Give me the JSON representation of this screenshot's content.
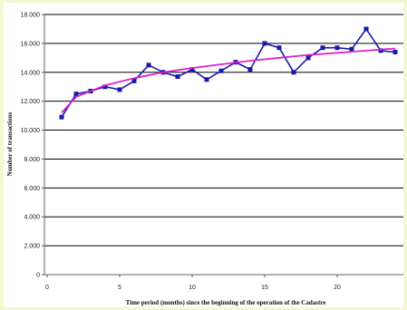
{
  "chart_data": {
    "type": "line",
    "title": "",
    "xlabel": "Time period (months) since the beginning of the operation of the Cadastre",
    "ylabel": "Number of transactions",
    "xlim": [
      0,
      25
    ],
    "ylim": [
      0,
      18000
    ],
    "x_ticks": [
      0,
      5,
      10,
      15,
      20,
      25
    ],
    "x_tick_labels": [
      "0",
      "5",
      "10",
      "15",
      "20",
      "25"
    ],
    "y_ticks": [
      0,
      2000,
      4000,
      6000,
      8000,
      10000,
      12000,
      14000,
      16000,
      18000
    ],
    "y_tick_labels": [
      "0",
      "2.000",
      "4.000",
      "6.000",
      "8.000",
      "10.000",
      "12.000",
      "14.000",
      "16.000",
      "18.000"
    ],
    "grid": "horizontal",
    "legend": "none",
    "series": [
      {
        "color": "#1a1aaa",
        "marker": "square",
        "x": [
          1,
          2,
          3,
          4,
          5,
          6,
          7,
          8,
          9,
          10,
          11,
          12,
          13,
          14,
          15,
          16,
          17,
          18,
          19,
          20,
          21,
          22,
          23,
          24
        ],
        "y": [
          10900,
          12500,
          12700,
          13000,
          12800,
          13400,
          14500,
          14000,
          13700,
          14200,
          13500,
          14100,
          14700,
          14200,
          16000,
          15700,
          14000,
          15000,
          15700,
          15700,
          15600,
          17000,
          15500,
          15400
        ]
      },
      {
        "color": "#dd22cc",
        "marker": "none",
        "x": [
          1,
          2,
          4,
          6,
          8,
          10,
          12,
          14,
          16,
          18,
          20,
          22,
          24
        ],
        "y": [
          11200,
          12300,
          13100,
          13600,
          14000,
          14300,
          14550,
          14800,
          15000,
          15200,
          15350,
          15500,
          15650
        ]
      }
    ]
  }
}
